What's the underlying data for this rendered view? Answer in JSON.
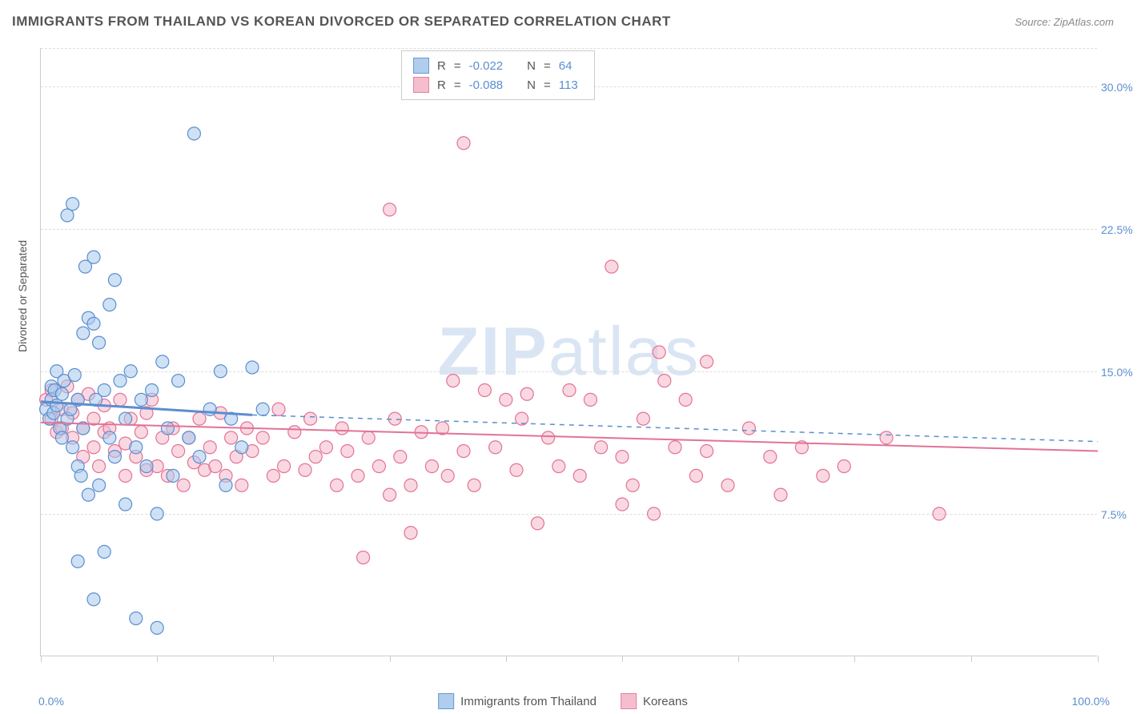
{
  "title": "IMMIGRANTS FROM THAILAND VS KOREAN DIVORCED OR SEPARATED CORRELATION CHART",
  "source_label": "Source: ",
  "source_value": "ZipAtlas.com",
  "watermark_bold": "ZIP",
  "watermark_light": "atlas",
  "y_axis_title": "Divorced or Separated",
  "x_axis": {
    "min_label": "0.0%",
    "max_label": "100.0%",
    "min": 0,
    "max": 100,
    "tick_positions": [
      0,
      11,
      22,
      33,
      44,
      55,
      66,
      77,
      88,
      100
    ]
  },
  "y_axis": {
    "min": 0,
    "max": 32,
    "ticks": [
      {
        "v": 7.5,
        "label": "7.5%"
      },
      {
        "v": 15.0,
        "label": "15.0%"
      },
      {
        "v": 22.5,
        "label": "22.5%"
      },
      {
        "v": 30.0,
        "label": "30.0%"
      }
    ]
  },
  "grid_color": "#dddddd",
  "series": {
    "thailand": {
      "label": "Immigrants from Thailand",
      "fill": "#a8c8ec",
      "stroke": "#5b8ecf",
      "fill_opacity": 0.55,
      "marker_r": 8,
      "R": "-0.022",
      "N": "64",
      "trend": {
        "x1": 0,
        "y1": 13.4,
        "x2": 20,
        "y2": 12.7,
        "solid_width": 3,
        "dash_to_x": 100,
        "dash_to_y": 11.3
      },
      "points": [
        [
          0.5,
          13.0
        ],
        [
          0.8,
          12.5
        ],
        [
          1.0,
          13.5
        ],
        [
          1.0,
          14.2
        ],
        [
          1.2,
          12.8
        ],
        [
          1.3,
          14.0
        ],
        [
          1.5,
          15.0
        ],
        [
          1.5,
          13.2
        ],
        [
          1.8,
          12.0
        ],
        [
          2.0,
          13.8
        ],
        [
          2.0,
          11.5
        ],
        [
          2.2,
          14.5
        ],
        [
          2.5,
          12.5
        ],
        [
          2.5,
          23.2
        ],
        [
          2.8,
          13.0
        ],
        [
          3.0,
          23.8
        ],
        [
          3.0,
          11.0
        ],
        [
          3.2,
          14.8
        ],
        [
          3.5,
          10.0
        ],
        [
          3.5,
          13.5
        ],
        [
          3.8,
          9.5
        ],
        [
          4.0,
          17.0
        ],
        [
          4.0,
          12.0
        ],
        [
          4.2,
          20.5
        ],
        [
          4.5,
          17.8
        ],
        [
          4.5,
          8.5
        ],
        [
          5.0,
          17.5
        ],
        [
          5.0,
          21.0
        ],
        [
          5.2,
          13.5
        ],
        [
          5.5,
          16.5
        ],
        [
          5.5,
          9.0
        ],
        [
          6.0,
          14.0
        ],
        [
          6.0,
          5.5
        ],
        [
          6.5,
          18.5
        ],
        [
          6.5,
          11.5
        ],
        [
          7.0,
          19.8
        ],
        [
          7.0,
          10.5
        ],
        [
          7.5,
          14.5
        ],
        [
          8.0,
          12.5
        ],
        [
          8.0,
          8.0
        ],
        [
          8.5,
          15.0
        ],
        [
          9.0,
          11.0
        ],
        [
          9.0,
          2.0
        ],
        [
          9.5,
          13.5
        ],
        [
          10.0,
          10.0
        ],
        [
          10.5,
          14.0
        ],
        [
          11.0,
          7.5
        ],
        [
          11.0,
          1.5
        ],
        [
          11.5,
          15.5
        ],
        [
          12.0,
          12.0
        ],
        [
          12.5,
          9.5
        ],
        [
          13.0,
          14.5
        ],
        [
          14.0,
          11.5
        ],
        [
          14.5,
          27.5
        ],
        [
          15.0,
          10.5
        ],
        [
          16.0,
          13.0
        ],
        [
          17.0,
          15.0
        ],
        [
          17.5,
          9.0
        ],
        [
          18.0,
          12.5
        ],
        [
          19.0,
          11.0
        ],
        [
          20.0,
          15.2
        ],
        [
          21.0,
          13.0
        ],
        [
          3.5,
          5.0
        ],
        [
          5.0,
          3.0
        ]
      ]
    },
    "koreans": {
      "label": "Koreans",
      "fill": "#f5b8ca",
      "stroke": "#e27396",
      "fill_opacity": 0.55,
      "marker_r": 8,
      "R": "-0.088",
      "N": "113",
      "trend": {
        "x1": 0,
        "y1": 12.3,
        "x2": 100,
        "y2": 10.8,
        "solid_width": 2
      },
      "points": [
        [
          0.5,
          13.5
        ],
        [
          1.0,
          12.5
        ],
        [
          1.0,
          14.0
        ],
        [
          1.5,
          11.8
        ],
        [
          2.0,
          13.0
        ],
        [
          2.0,
          12.0
        ],
        [
          2.5,
          14.2
        ],
        [
          3.0,
          11.5
        ],
        [
          3.0,
          12.8
        ],
        [
          3.5,
          13.5
        ],
        [
          4.0,
          10.5
        ],
        [
          4.0,
          12.0
        ],
        [
          4.5,
          13.8
        ],
        [
          5.0,
          11.0
        ],
        [
          5.0,
          12.5
        ],
        [
          5.5,
          10.0
        ],
        [
          6.0,
          13.2
        ],
        [
          6.0,
          11.8
        ],
        [
          6.5,
          12.0
        ],
        [
          7.0,
          10.8
        ],
        [
          7.5,
          13.5
        ],
        [
          8.0,
          11.2
        ],
        [
          8.0,
          9.5
        ],
        [
          8.5,
          12.5
        ],
        [
          9.0,
          10.5
        ],
        [
          9.5,
          11.8
        ],
        [
          10.0,
          9.8
        ],
        [
          10.0,
          12.8
        ],
        [
          10.5,
          13.5
        ],
        [
          11.0,
          10.0
        ],
        [
          11.5,
          11.5
        ],
        [
          12.0,
          9.5
        ],
        [
          12.5,
          12.0
        ],
        [
          13.0,
          10.8
        ],
        [
          13.5,
          9.0
        ],
        [
          14.0,
          11.5
        ],
        [
          14.5,
          10.2
        ],
        [
          15.0,
          12.5
        ],
        [
          15.5,
          9.8
        ],
        [
          16.0,
          11.0
        ],
        [
          16.5,
          10.0
        ],
        [
          17.0,
          12.8
        ],
        [
          17.5,
          9.5
        ],
        [
          18.0,
          11.5
        ],
        [
          18.5,
          10.5
        ],
        [
          19.0,
          9.0
        ],
        [
          19.5,
          12.0
        ],
        [
          20.0,
          10.8
        ],
        [
          21.0,
          11.5
        ],
        [
          22.0,
          9.5
        ],
        [
          22.5,
          13.0
        ],
        [
          23.0,
          10.0
        ],
        [
          24.0,
          11.8
        ],
        [
          25.0,
          9.8
        ],
        [
          25.5,
          12.5
        ],
        [
          26.0,
          10.5
        ],
        [
          27.0,
          11.0
        ],
        [
          28.0,
          9.0
        ],
        [
          28.5,
          12.0
        ],
        [
          29.0,
          10.8
        ],
        [
          30.0,
          9.5
        ],
        [
          30.5,
          5.2
        ],
        [
          31.0,
          11.5
        ],
        [
          32.0,
          10.0
        ],
        [
          33.0,
          23.5
        ],
        [
          33.0,
          8.5
        ],
        [
          33.5,
          12.5
        ],
        [
          34.0,
          10.5
        ],
        [
          35.0,
          9.0
        ],
        [
          35.0,
          6.5
        ],
        [
          36.0,
          11.8
        ],
        [
          37.0,
          10.0
        ],
        [
          38.0,
          12.0
        ],
        [
          38.5,
          9.5
        ],
        [
          39.0,
          14.5
        ],
        [
          40.0,
          10.8
        ],
        [
          40.0,
          27.0
        ],
        [
          41.0,
          9.0
        ],
        [
          42.0,
          14.0
        ],
        [
          43.0,
          11.0
        ],
        [
          44.0,
          13.5
        ],
        [
          45.0,
          9.8
        ],
        [
          45.5,
          12.5
        ],
        [
          46.0,
          13.8
        ],
        [
          47.0,
          7.0
        ],
        [
          48.0,
          11.5
        ],
        [
          49.0,
          10.0
        ],
        [
          50.0,
          14.0
        ],
        [
          51.0,
          9.5
        ],
        [
          52.0,
          13.5
        ],
        [
          53.0,
          11.0
        ],
        [
          54.0,
          20.5
        ],
        [
          55.0,
          10.5
        ],
        [
          56.0,
          9.0
        ],
        [
          57.0,
          12.5
        ],
        [
          58.0,
          7.5
        ],
        [
          58.5,
          16.0
        ],
        [
          59.0,
          14.5
        ],
        [
          60.0,
          11.0
        ],
        [
          61.0,
          13.5
        ],
        [
          62.0,
          9.5
        ],
        [
          63.0,
          10.8
        ],
        [
          65.0,
          9.0
        ],
        [
          67.0,
          12.0
        ],
        [
          69.0,
          10.5
        ],
        [
          70.0,
          8.5
        ],
        [
          72.0,
          11.0
        ],
        [
          74.0,
          9.5
        ],
        [
          76.0,
          10.0
        ],
        [
          80.0,
          11.5
        ],
        [
          85.0,
          7.5
        ],
        [
          63.0,
          15.5
        ],
        [
          55.0,
          8.0
        ]
      ]
    }
  },
  "legend_top": {
    "R_label": "R",
    "N_label": "N",
    "eq": "="
  },
  "bottom_legend": {
    "items": [
      "thailand",
      "koreans"
    ]
  }
}
